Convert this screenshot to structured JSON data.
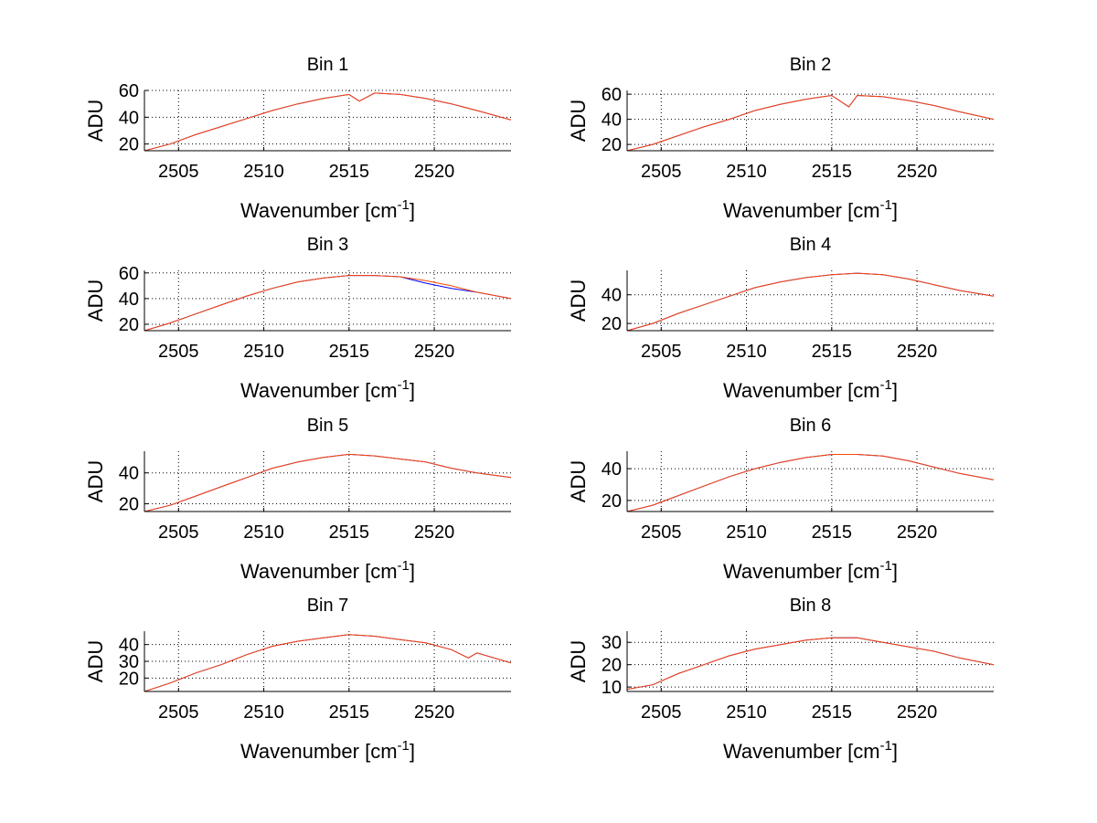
{
  "figure": {
    "colors": {
      "background": "#ffffff",
      "axis": "#000000",
      "grid": "#000000",
      "series_1": "#0000ff",
      "series_2": "#ff4500"
    }
  },
  "chart_data": [
    {
      "type": "line",
      "title": "Bin 1",
      "xlabel": "Wavenumber [cm",
      "xlabel_superscript": "-1",
      "xlabel_suffix": "]",
      "ylabel": "ADU",
      "xlim": [
        2503,
        2524.5
      ],
      "ylim": [
        15,
        60
      ],
      "xticks": [
        2505,
        2510,
        2515,
        2520
      ],
      "yticks": [
        20,
        40,
        60
      ],
      "grid": true,
      "series": [
        {
          "color": "#0000ff",
          "x": [
            2503.0,
            2504.5,
            2506.0,
            2507.5,
            2509.0,
            2510.5,
            2512.0,
            2513.5,
            2515.0,
            2515.6,
            2516.5,
            2518.0,
            2519.5,
            2521.0,
            2522.5,
            2524.5
          ],
          "y": [
            15,
            20,
            27,
            33,
            39,
            45,
            50,
            54,
            57,
            52,
            58,
            57,
            54,
            50,
            45,
            38
          ]
        },
        {
          "color": "#ff4500",
          "x": [
            2503.0,
            2504.5,
            2506.0,
            2507.5,
            2509.0,
            2510.5,
            2512.0,
            2513.5,
            2515.0,
            2515.6,
            2516.5,
            2518.0,
            2519.5,
            2521.0,
            2522.5,
            2524.5
          ],
          "y": [
            15,
            20,
            27,
            33,
            39,
            45,
            50,
            54,
            57,
            52,
            58,
            57,
            54,
            50,
            45,
            38
          ]
        }
      ]
    },
    {
      "type": "line",
      "title": "Bin 2",
      "xlabel": "Wavenumber [cm",
      "xlabel_superscript": "-1",
      "xlabel_suffix": "]",
      "ylabel": "ADU",
      "xlim": [
        2503,
        2524.5
      ],
      "ylim": [
        15,
        63
      ],
      "xticks": [
        2505,
        2510,
        2515,
        2520
      ],
      "yticks": [
        20,
        40,
        60
      ],
      "grid": true,
      "series": [
        {
          "color": "#0000ff",
          "x": [
            2503.0,
            2504.5,
            2506.0,
            2507.5,
            2509.0,
            2510.5,
            2512.0,
            2513.5,
            2515.0,
            2516.0,
            2516.5,
            2518.0,
            2519.5,
            2521.0,
            2522.5,
            2524.5
          ],
          "y": [
            15,
            20,
            27,
            34,
            40,
            47,
            52,
            56,
            59,
            50,
            59,
            58,
            55,
            51,
            46,
            40
          ]
        },
        {
          "color": "#ff4500",
          "x": [
            2503.0,
            2504.5,
            2506.0,
            2507.5,
            2509.0,
            2510.5,
            2512.0,
            2513.5,
            2515.0,
            2516.0,
            2516.5,
            2518.0,
            2519.5,
            2521.0,
            2522.5,
            2524.5
          ],
          "y": [
            15,
            20,
            27,
            34,
            40,
            47,
            52,
            56,
            59,
            50,
            59,
            58,
            55,
            51,
            46,
            40
          ]
        }
      ]
    },
    {
      "type": "line",
      "title": "Bin 3",
      "xlabel": "Wavenumber [cm",
      "xlabel_superscript": "-1",
      "xlabel_suffix": "]",
      "ylabel": "ADU",
      "xlim": [
        2503,
        2524.5
      ],
      "ylim": [
        15,
        62
      ],
      "xticks": [
        2505,
        2510,
        2515,
        2520
      ],
      "yticks": [
        20,
        40,
        60
      ],
      "grid": true,
      "series": [
        {
          "color": "#0000ff",
          "x": [
            2503.0,
            2504.5,
            2506.0,
            2507.5,
            2509.0,
            2510.5,
            2512.0,
            2513.5,
            2515.0,
            2516.5,
            2518.0,
            2519.5,
            2521.0,
            2522.5,
            2524.5
          ],
          "y": [
            15,
            21,
            28,
            35,
            42,
            48,
            53,
            56,
            58,
            58,
            57,
            52,
            48,
            45,
            40
          ]
        },
        {
          "color": "#ff4500",
          "x": [
            2503.0,
            2504.5,
            2506.0,
            2507.5,
            2509.0,
            2510.5,
            2512.0,
            2513.5,
            2515.0,
            2516.5,
            2518.0,
            2519.5,
            2521.0,
            2522.5,
            2524.5
          ],
          "y": [
            15,
            21,
            28,
            35,
            42,
            48,
            53,
            56,
            58,
            58,
            57,
            54,
            50,
            45,
            40
          ]
        }
      ]
    },
    {
      "type": "line",
      "title": "Bin 4",
      "xlabel": "Wavenumber [cm",
      "xlabel_superscript": "-1",
      "xlabel_suffix": "]",
      "ylabel": "ADU",
      "xlim": [
        2503,
        2524.5
      ],
      "ylim": [
        15,
        57
      ],
      "xticks": [
        2505,
        2510,
        2515,
        2520
      ],
      "yticks": [
        20,
        40
      ],
      "grid": true,
      "series": [
        {
          "color": "#0000ff",
          "x": [
            2503.0,
            2504.5,
            2506.0,
            2507.5,
            2509.0,
            2510.5,
            2512.0,
            2513.5,
            2515.0,
            2516.5,
            2518.0,
            2519.5,
            2521.0,
            2522.5,
            2524.5
          ],
          "y": [
            15,
            20,
            27,
            33,
            39,
            45,
            49,
            52,
            54,
            55,
            54,
            51,
            47,
            43,
            39
          ]
        },
        {
          "color": "#ff4500",
          "x": [
            2503.0,
            2504.5,
            2506.0,
            2507.5,
            2509.0,
            2510.5,
            2512.0,
            2513.5,
            2515.0,
            2516.5,
            2518.0,
            2519.5,
            2521.0,
            2522.5,
            2524.5
          ],
          "y": [
            15,
            20,
            27,
            33,
            39,
            45,
            49,
            52,
            54,
            55,
            54,
            51,
            47,
            43,
            39
          ]
        }
      ]
    },
    {
      "type": "line",
      "title": "Bin 5",
      "xlabel": "Wavenumber [cm",
      "xlabel_superscript": "-1",
      "xlabel_suffix": "]",
      "ylabel": "ADU",
      "xlim": [
        2503,
        2524.5
      ],
      "ylim": [
        15,
        54
      ],
      "xticks": [
        2505,
        2510,
        2515,
        2520
      ],
      "yticks": [
        20,
        40
      ],
      "grid": true,
      "series": [
        {
          "color": "#0000ff",
          "x": [
            2503.0,
            2504.5,
            2506.0,
            2507.5,
            2509.0,
            2510.5,
            2512.0,
            2513.5,
            2515.0,
            2516.5,
            2518.0,
            2519.5,
            2521.0,
            2522.5,
            2524.5
          ],
          "y": [
            15,
            19,
            25,
            31,
            37,
            43,
            47,
            50,
            52,
            51,
            49,
            47,
            43,
            40,
            37
          ]
        },
        {
          "color": "#ff4500",
          "x": [
            2503.0,
            2504.5,
            2506.0,
            2507.5,
            2509.0,
            2510.5,
            2512.0,
            2513.5,
            2515.0,
            2516.5,
            2518.0,
            2519.5,
            2521.0,
            2522.5,
            2524.5
          ],
          "y": [
            15,
            19,
            25,
            31,
            37,
            43,
            47,
            50,
            52,
            51,
            49,
            47,
            43,
            40,
            37
          ]
        }
      ]
    },
    {
      "type": "line",
      "title": "Bin 6",
      "xlabel": "Wavenumber [cm",
      "xlabel_superscript": "-1",
      "xlabel_suffix": "]",
      "ylabel": "ADU",
      "xlim": [
        2503,
        2524.5
      ],
      "ylim": [
        13,
        51
      ],
      "xticks": [
        2505,
        2510,
        2515,
        2520
      ],
      "yticks": [
        20,
        40
      ],
      "grid": true,
      "series": [
        {
          "color": "#0000ff",
          "x": [
            2503.0,
            2504.5,
            2506.0,
            2507.5,
            2509.0,
            2510.5,
            2512.0,
            2513.5,
            2515.0,
            2516.5,
            2518.0,
            2519.5,
            2521.0,
            2522.5,
            2524.5
          ],
          "y": [
            13,
            17,
            23,
            29,
            35,
            40,
            44,
            47,
            49,
            49,
            48,
            45,
            41,
            37,
            33
          ]
        },
        {
          "color": "#ff4500",
          "x": [
            2503.0,
            2504.5,
            2506.0,
            2507.5,
            2509.0,
            2510.5,
            2512.0,
            2513.5,
            2515.0,
            2516.5,
            2518.0,
            2519.5,
            2521.0,
            2522.5,
            2524.5
          ],
          "y": [
            13,
            17,
            23,
            29,
            35,
            40,
            44,
            47,
            49,
            49,
            48,
            45,
            41,
            37,
            33
          ]
        }
      ]
    },
    {
      "type": "line",
      "title": "Bin 7",
      "xlabel": "Wavenumber [cm",
      "xlabel_superscript": "-1",
      "xlabel_suffix": "]",
      "ylabel": "ADU",
      "xlim": [
        2503,
        2524.5
      ],
      "ylim": [
        12,
        48
      ],
      "xticks": [
        2505,
        2510,
        2515,
        2520
      ],
      "yticks": [
        20,
        30,
        40
      ],
      "grid": true,
      "series": [
        {
          "color": "#0000ff",
          "x": [
            2503.0,
            2504.5,
            2506.0,
            2507.5,
            2509.0,
            2510.5,
            2512.0,
            2513.5,
            2515.0,
            2516.5,
            2518.0,
            2519.5,
            2521.0,
            2522.0,
            2522.5,
            2524.5
          ],
          "y": [
            12,
            17,
            23,
            28,
            34,
            39,
            42,
            44,
            46,
            45,
            43,
            41,
            37,
            32,
            35,
            29
          ]
        },
        {
          "color": "#ff4500",
          "x": [
            2503.0,
            2504.5,
            2506.0,
            2507.5,
            2509.0,
            2510.5,
            2512.0,
            2513.5,
            2515.0,
            2516.5,
            2518.0,
            2519.5,
            2521.0,
            2522.0,
            2522.5,
            2524.5
          ],
          "y": [
            12,
            17,
            23,
            28,
            34,
            39,
            42,
            44,
            46,
            45,
            43,
            41,
            37,
            32,
            35,
            29
          ]
        }
      ]
    },
    {
      "type": "line",
      "title": "Bin 8",
      "xlabel": "Wavenumber [cm",
      "xlabel_superscript": "-1",
      "xlabel_suffix": "]",
      "ylabel": "ADU",
      "xlim": [
        2503,
        2524.5
      ],
      "ylim": [
        8,
        35
      ],
      "xticks": [
        2505,
        2510,
        2515,
        2520
      ],
      "yticks": [
        10,
        20,
        30
      ],
      "grid": true,
      "series": [
        {
          "color": "#0000ff",
          "x": [
            2503.0,
            2504.5,
            2506.0,
            2507.5,
            2509.0,
            2510.5,
            2512.0,
            2513.5,
            2515.0,
            2516.5,
            2518.0,
            2519.5,
            2521.0,
            2522.5,
            2524.5
          ],
          "y": [
            9,
            11,
            16,
            20,
            24,
            27,
            29,
            31,
            32,
            32,
            30,
            28,
            26,
            23,
            20
          ]
        },
        {
          "color": "#ff4500",
          "x": [
            2503.0,
            2504.5,
            2506.0,
            2507.5,
            2509.0,
            2510.5,
            2512.0,
            2513.5,
            2515.0,
            2516.5,
            2518.0,
            2519.5,
            2521.0,
            2522.5,
            2524.5
          ],
          "y": [
            9,
            11,
            16,
            20,
            24,
            27,
            29,
            31,
            32,
            32,
            30,
            28,
            26,
            23,
            20
          ]
        }
      ]
    }
  ]
}
